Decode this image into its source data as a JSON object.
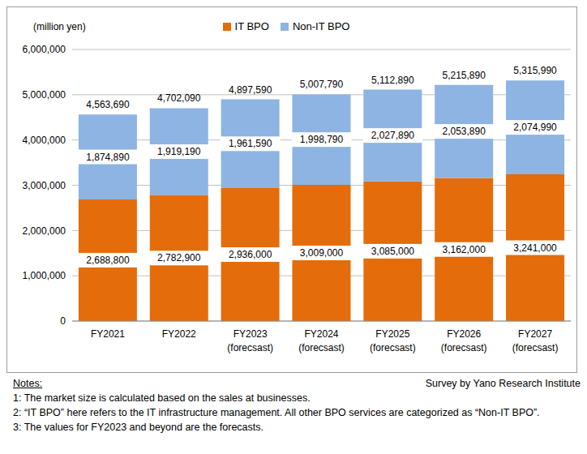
{
  "chart_data": {
    "type": "bar",
    "stacked": true,
    "data_labels": true,
    "grid": true,
    "legend": "top",
    "y_label": "(million  yen)",
    "categories": [
      "FY2021",
      "FY2022",
      "FY2023\n(forecsast)",
      "FY2024\n(forecsast)",
      "FY2025\n(forecsast)",
      "FY2026\n(forecsast)",
      "FY2027\n(forecsast)"
    ],
    "series": [
      {
        "name": "IT BPO",
        "color": "#e46c0a",
        "values": [
          2688800,
          2782900,
          2936000,
          3009000,
          3085000,
          3162000,
          3241000
        ],
        "value_labels": [
          "2,688,800",
          "2,782,900",
          "2,936,000",
          "3,009,000",
          "3,085,000",
          "3,162,000",
          "3,241,000"
        ]
      },
      {
        "name": "Non-IT BPO",
        "color": "#8db4e2",
        "values": [
          1874890,
          1919190,
          1961590,
          1998790,
          2027890,
          2053890,
          2074990
        ],
        "value_labels": [
          "1,874,890",
          "1,919,190",
          "1,961,590",
          "1,998,790",
          "2,027,890",
          "2,053,890",
          "2,074,990"
        ]
      }
    ],
    "totals": [
      4563690,
      4702090,
      4897590,
      5007790,
      5112890,
      5215890,
      5315990
    ],
    "total_labels": [
      "4,563,690",
      "4,702,090",
      "4,897,590",
      "5,007,790",
      "5,112,890",
      "5,215,890",
      "5,315,990"
    ],
    "ylim": [
      0,
      6000000
    ],
    "yticks": [
      0,
      {
        "value": 1000000,
        "label": "1,000,000"
      },
      {
        "value": 2000000,
        "label": "2,000,000"
      },
      {
        "value": 3000000,
        "label": "3,000,000"
      },
      {
        "value": 4000000,
        "label": "4,000,000"
      },
      {
        "value": 5000000,
        "label": "5,000,000"
      },
      {
        "value": 6000000,
        "label": "6,000,000"
      }
    ],
    "notes_title": "Notes:",
    "notes": [
      "1: The market size is calculated based on the sales at businesses.",
      "2: “IT BPO” here refers to the IT infrastructure management. All other BPO services are categorized as “Non-IT BPO”.",
      "3: The values for FY2023 and beyond are the forecasts."
    ],
    "source": "Survey by Yano Research Institute"
  }
}
